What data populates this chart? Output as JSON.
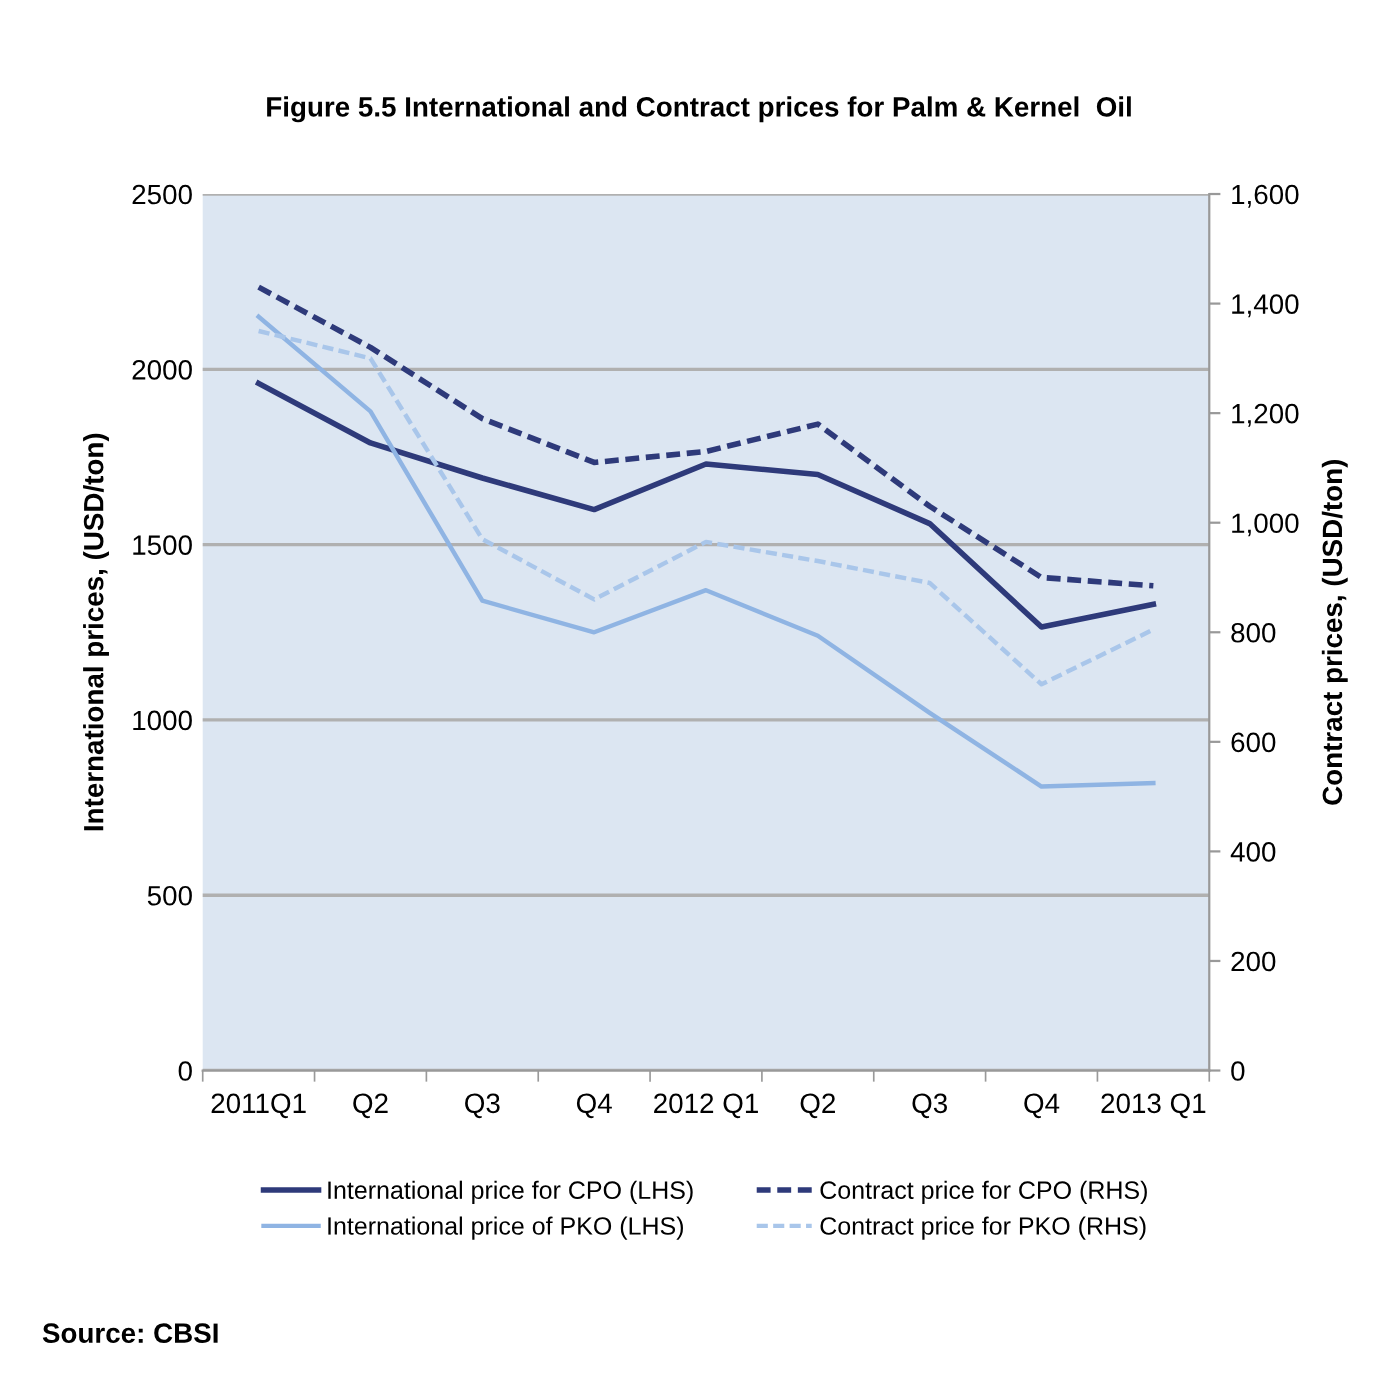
{
  "chart_data": {
    "type": "line",
    "title": "Figure 5.5 International and Contract prices for Palm & Kernel  Oil",
    "categories": [
      "2011Q1",
      "Q2",
      "Q3",
      "Q4",
      "2012 Q1",
      "Q2",
      "Q3",
      "Q4",
      "2013 Q1"
    ],
    "series": [
      {
        "name": "International price for CPO (LHS)",
        "color": "#2e3a7a",
        "line_style": "solid",
        "values": [
          1960,
          1790,
          1690,
          1600,
          1730,
          1700,
          1560,
          1265,
          1330
        ]
      },
      {
        "name": "Contract price for CPO (RHS)",
        "color": "#2e3a7a",
        "line_style": "dashed",
        "axis": "y2",
        "values": [
          1430,
          1320,
          1190,
          1110,
          1130,
          1180,
          1030,
          900,
          885
        ]
      },
      {
        "name": "International price of PKO (LHS)",
        "color": "#8fb4e3",
        "line_style": "solid",
        "values": [
          2150,
          1880,
          1340,
          1250,
          1370,
          1240,
          1020,
          810,
          820
        ]
      },
      {
        "name": "Contract price for PKO (RHS)",
        "color": "#a9c6ea",
        "line_style": "dashed",
        "axis": "y2",
        "values": [
          1350,
          1300,
          970,
          860,
          965,
          930,
          890,
          705,
          805
        ]
      }
    ],
    "ylabel": "International prices, (USD/ton)",
    "y2label": "Contract prices, (USD/ton)",
    "ylim": [
      0,
      2500
    ],
    "yticks": [
      0,
      500,
      1000,
      1500,
      2000,
      2500
    ],
    "y2lim": [
      0,
      1600
    ],
    "y2ticks": [
      0,
      200,
      400,
      600,
      800,
      {
        "value": 1000,
        "label": "1,000"
      },
      {
        "value": 1200,
        "label": "1,200"
      },
      {
        "value": 1400,
        "label": "1,400"
      },
      {
        "value": 1600,
        "label": "1,600"
      }
    ],
    "grid": "y",
    "legend": "bottom",
    "marker": "none",
    "annotations": [
      "Source: CBSI"
    ]
  }
}
